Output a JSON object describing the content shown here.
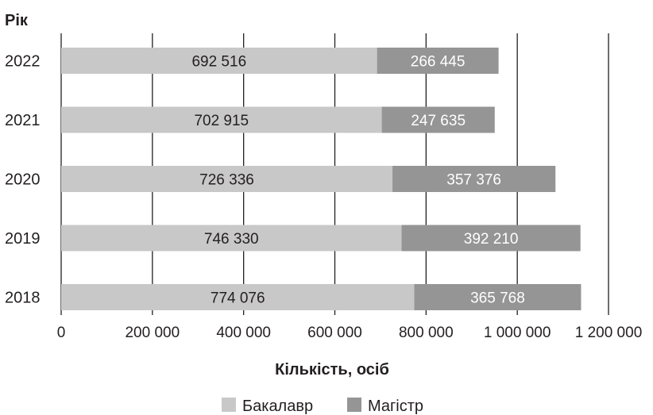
{
  "chart_data": {
    "type": "bar",
    "orientation": "horizontal",
    "stacked": true,
    "categories": [
      "2022",
      "2021",
      "2020",
      "2019",
      "2018"
    ],
    "series": [
      {
        "name": "Бакалавр",
        "values": [
          692516,
          702915,
          726336,
          746330,
          774076
        ],
        "color": "#c8c8c8",
        "label_color": "#231f20"
      },
      {
        "name": "Магістр",
        "values": [
          266445,
          247635,
          357376,
          392210,
          365768
        ],
        "color": "#959595",
        "label_color": "#ffffff"
      }
    ],
    "value_labels": [
      [
        "692 516",
        "702 915",
        "726 336",
        "746 330",
        "774 076"
      ],
      [
        "266 445",
        "247 635",
        "357 376",
        "392 210",
        "365 768"
      ]
    ],
    "xlabel": "Кількість, осіб",
    "ylabel": "Рік",
    "xlim": [
      0,
      1200000
    ],
    "xticks": [
      0,
      200000,
      400000,
      600000,
      800000,
      1000000,
      1200000
    ],
    "xtick_labels": [
      "0",
      "200 000",
      "400 000",
      "600 000",
      "800 000",
      "1 000 000",
      "1 200 000"
    ],
    "grid": "vertical",
    "legend": "bottom"
  }
}
